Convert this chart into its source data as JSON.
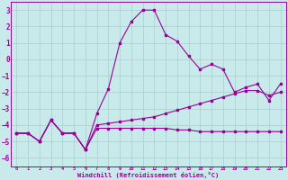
{
  "xlabel": "Windchill (Refroidissement éolien,°C)",
  "background_color": "#c8eaea",
  "grid_color": "#aacccc",
  "line_color": "#990099",
  "xlim": [
    -0.5,
    23.5
  ],
  "ylim": [
    -6.5,
    3.5
  ],
  "yticks": [
    3,
    2,
    1,
    0,
    -1,
    -2,
    -3,
    -4,
    -5,
    -6
  ],
  "xticks": [
    0,
    1,
    2,
    3,
    4,
    5,
    6,
    7,
    8,
    9,
    10,
    11,
    12,
    13,
    14,
    15,
    16,
    17,
    18,
    19,
    20,
    21,
    22,
    23
  ],
  "series_1": [
    -4.5,
    -4.5,
    -5.0,
    -3.7,
    -4.5,
    -4.5,
    -5.5,
    -4.2,
    -4.2,
    -4.2,
    -4.2,
    -4.2,
    -4.2,
    -4.2,
    -4.3,
    -4.3,
    -4.4,
    -4.4,
    -4.4,
    -4.4,
    -4.4,
    -4.4,
    -4.4,
    -4.4
  ],
  "series_2": [
    -4.5,
    -4.5,
    -5.0,
    -3.7,
    -4.5,
    -4.5,
    -5.5,
    -4.0,
    -3.9,
    -3.8,
    -3.7,
    -3.6,
    -3.5,
    -3.3,
    -3.1,
    -2.9,
    -2.7,
    -2.5,
    -2.3,
    -2.1,
    -1.9,
    -1.9,
    -2.2,
    -2.0
  ],
  "series_3": [
    -4.5,
    -4.5,
    -5.0,
    -3.7,
    -4.5,
    -4.5,
    -5.5,
    -3.3,
    -1.8,
    1.0,
    2.3,
    3.0,
    3.0,
    1.5,
    1.1,
    0.2,
    -0.6,
    -0.3,
    -0.6,
    -2.0,
    -1.7,
    -1.5,
    -2.5,
    -1.5
  ]
}
